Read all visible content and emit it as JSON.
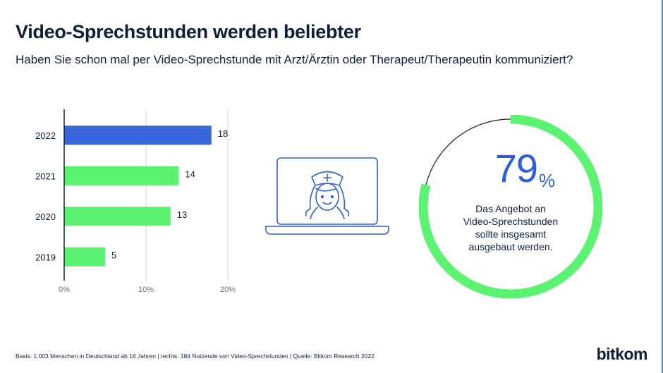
{
  "title": "Video-Sprechstunden werden beliebter",
  "subtitle": "Haben Sie schon mal per Video-Sprechstunde mit Arzt/Ärztin oder Therapeut/Therapeutin kommuniziert?",
  "colors": {
    "highlight_bar": "#3a66db",
    "bar": "#5cf373",
    "ring": "#5cf373",
    "percent_text": "#2f5fd8",
    "grid": "#d0d4da",
    "axis": "#0f1f3a",
    "icon_stroke": "#2f5fd8"
  },
  "chart_data": [
    {
      "type": "bar",
      "orientation": "horizontal",
      "categories": [
        "2022",
        "2021",
        "2020",
        "2019"
      ],
      "values": [
        18,
        14,
        13,
        5
      ],
      "value_labels": [
        "18",
        "14",
        "13",
        "5"
      ],
      "highlight_category": "2022",
      "xlim": [
        0,
        20
      ],
      "x_ticks": [
        0,
        10,
        20
      ],
      "x_tick_labels": [
        "0%",
        "10%",
        "20%"
      ],
      "grid": true
    },
    {
      "type": "pie",
      "style": "donut",
      "values": [
        79,
        21
      ],
      "value_label": "79",
      "unit": "%",
      "description": "Das Angebot an Video-Sprechstunden sollte insgesamt ausgebaut werden."
    }
  ],
  "ring_text_lines": [
    "Das Angebot an",
    "Video-Sprechstunden",
    "sollte insgesamt",
    "ausgebaut werden."
  ],
  "icon": "laptop-doctor-icon",
  "footer": "Basis: 1.003 Menschen in Deutschland ab 16 Jahren | rechts: 184 Nutzende von Video-Sprechstunden | Quelle: Bitkom Research 2022",
  "logo": "bitkom"
}
